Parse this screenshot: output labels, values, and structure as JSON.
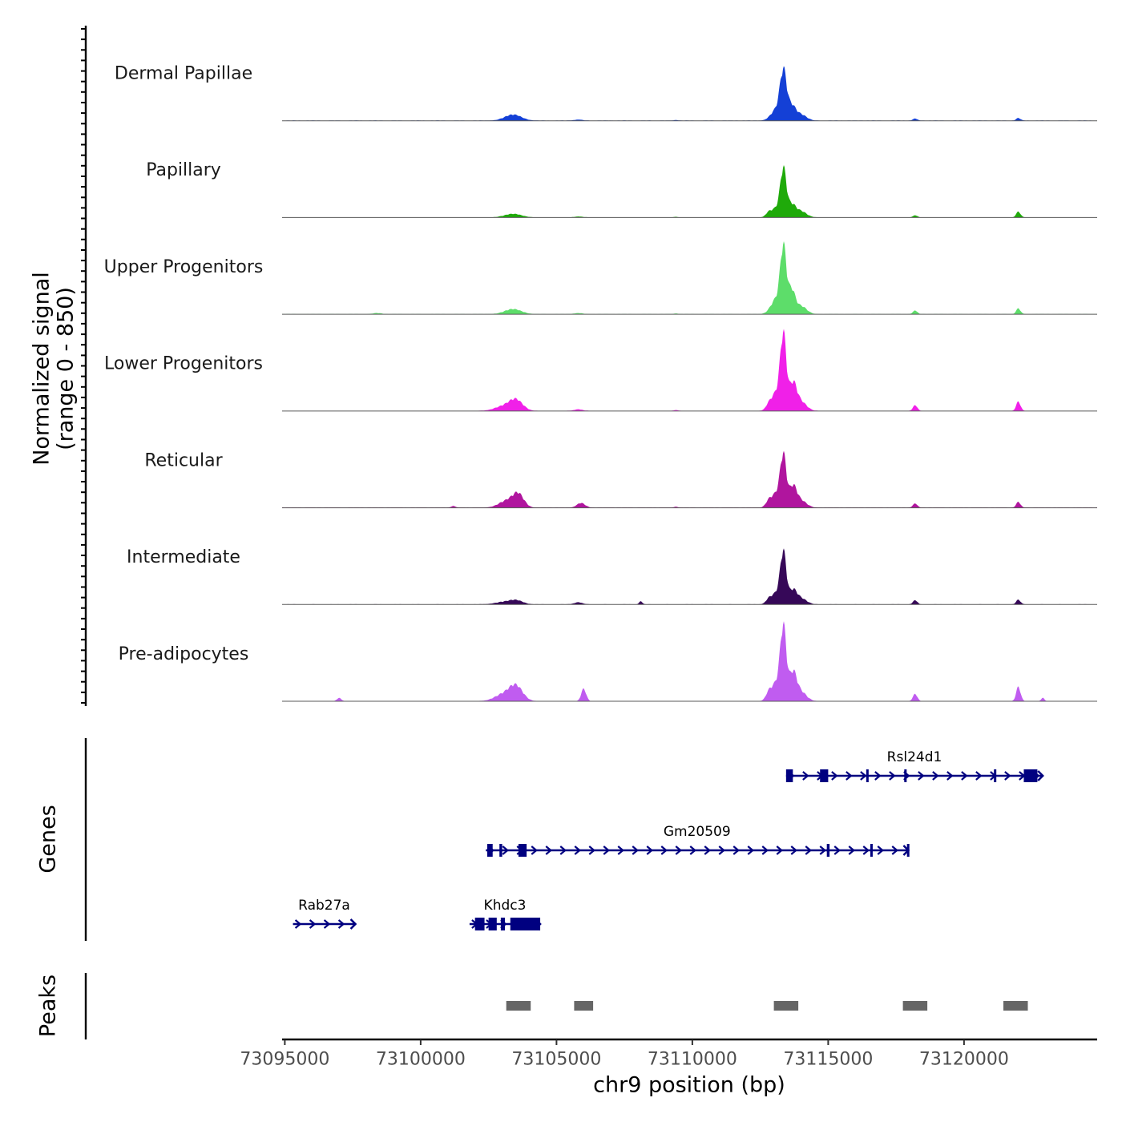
{
  "chart_data": {
    "type": "area",
    "title": "",
    "ylabel_signal": "Normalized signal",
    "ylabel_range": "(range 0 - 850)",
    "signal_range": [
      0,
      850
    ],
    "xlabel": "chr9 position (bp)",
    "xlim": [
      73094900,
      73124900
    ],
    "x_ticks": [
      {
        "value": 73095000,
        "label": "73095000"
      },
      {
        "value": 73100000,
        "label": "73100000"
      },
      {
        "value": 73105000,
        "label": "73105000"
      },
      {
        "value": 73110000,
        "label": "73110000"
      },
      {
        "value": 73115000,
        "label": "73115000"
      },
      {
        "value": 73120000,
        "label": "73120000"
      }
    ],
    "tracks": [
      {
        "name": "Dermal Papillae",
        "color": "#1440d6",
        "peaks": [
          [
            73103400,
            60,
            300
          ],
          [
            73105800,
            10,
            150
          ],
          [
            73109400,
            6,
            80
          ],
          [
            73113350,
            450,
            120
          ],
          [
            73113650,
            140,
            150
          ],
          [
            73113100,
            110,
            200
          ],
          [
            73114000,
            60,
            200
          ],
          [
            73118200,
            20,
            80
          ],
          [
            73122000,
            25,
            80
          ]
        ]
      },
      {
        "name": "Papillary",
        "color": "#1faa0a",
        "peaks": [
          [
            73103400,
            35,
            300
          ],
          [
            73105800,
            8,
            150
          ],
          [
            73109400,
            5,
            80
          ],
          [
            73112800,
            30,
            100
          ],
          [
            73113350,
            440,
            110
          ],
          [
            73113650,
            120,
            150
          ],
          [
            73113100,
            90,
            200
          ],
          [
            73114000,
            60,
            200
          ],
          [
            73118200,
            20,
            80
          ],
          [
            73122000,
            55,
            80
          ]
        ]
      },
      {
        "name": "Upper Progenitors",
        "color": "#5ddd6a",
        "peaks": [
          [
            73098400,
            10,
            150
          ],
          [
            73103400,
            50,
            300
          ],
          [
            73105800,
            10,
            150
          ],
          [
            73109400,
            6,
            80
          ],
          [
            73113350,
            610,
            110
          ],
          [
            73113650,
            230,
            130
          ],
          [
            73113100,
            150,
            200
          ],
          [
            73114000,
            80,
            200
          ],
          [
            73118200,
            35,
            80
          ],
          [
            73122000,
            55,
            80
          ]
        ]
      },
      {
        "name": "Lower Progenitors",
        "color": "#f020e8",
        "peaks": [
          [
            73103500,
            110,
            250
          ],
          [
            73103000,
            40,
            300
          ],
          [
            73105800,
            15,
            150
          ],
          [
            73109400,
            8,
            80
          ],
          [
            73112800,
            30,
            100
          ],
          [
            73113350,
            690,
            110
          ],
          [
            73113700,
            260,
            140
          ],
          [
            73113100,
            180,
            200
          ],
          [
            73114000,
            90,
            200
          ],
          [
            73118200,
            55,
            80
          ],
          [
            73122000,
            90,
            80
          ]
        ]
      },
      {
        "name": "Reticular",
        "color": "#b0159e",
        "peaks": [
          [
            73103600,
            120,
            200
          ],
          [
            73103200,
            70,
            300
          ],
          [
            73101200,
            15,
            80
          ],
          [
            73105900,
            45,
            150
          ],
          [
            73109400,
            8,
            80
          ],
          [
            73112800,
            40,
            100
          ],
          [
            73113350,
            470,
            110
          ],
          [
            73113700,
            200,
            140
          ],
          [
            73113100,
            140,
            200
          ],
          [
            73114000,
            70,
            200
          ],
          [
            73118200,
            40,
            80
          ],
          [
            73122000,
            55,
            80
          ]
        ]
      },
      {
        "name": "Intermediate",
        "color": "#360858",
        "peaks": [
          [
            73103500,
            40,
            250
          ],
          [
            73103000,
            20,
            300
          ],
          [
            73105800,
            20,
            150
          ],
          [
            73108100,
            30,
            60
          ],
          [
            73112800,
            30,
            100
          ],
          [
            73113350,
            480,
            110
          ],
          [
            73113700,
            130,
            140
          ],
          [
            73113100,
            110,
            200
          ],
          [
            73114000,
            60,
            200
          ],
          [
            73118200,
            40,
            80
          ],
          [
            73122000,
            45,
            80
          ]
        ]
      },
      {
        "name": "Pre-adipocytes",
        "color": "#c05cf0",
        "peaks": [
          [
            73097000,
            30,
            80
          ],
          [
            73103500,
            150,
            250
          ],
          [
            73103000,
            60,
            300
          ],
          [
            73106000,
            120,
            90
          ],
          [
            73112800,
            50,
            100
          ],
          [
            73113350,
            670,
            110
          ],
          [
            73113700,
            270,
            140
          ],
          [
            73113100,
            180,
            200
          ],
          [
            73114000,
            90,
            200
          ],
          [
            73118200,
            70,
            80
          ],
          [
            73122000,
            140,
            80
          ],
          [
            73122900,
            30,
            60
          ]
        ]
      }
    ],
    "genes": [
      {
        "name": "Rsl24d1",
        "row": 0,
        "start": 73113450,
        "end": 73122900,
        "exons": [
          [
            73113450,
            73113700
          ],
          [
            73114700,
            73115000
          ],
          [
            73116400,
            73116450
          ],
          [
            73117800,
            73117850
          ],
          [
            73121100,
            73121150
          ],
          [
            73122200,
            73122700
          ]
        ]
      },
      {
        "name": "Gm20509",
        "row": 1,
        "start": 73102400,
        "end": 73117950,
        "exons": [
          [
            73102450,
            73102650
          ],
          [
            73102900,
            73103000
          ],
          [
            73103600,
            73103900
          ],
          [
            73114950,
            73115050
          ],
          [
            73116550,
            73116600
          ],
          [
            73117900,
            73117950
          ]
        ]
      },
      {
        "name": "Rab27a",
        "row": 2,
        "start": 73095300,
        "end": 73097600,
        "exons": []
      },
      {
        "name": "Khdc3",
        "row": 2,
        "start": 73101800,
        "end": 73104400,
        "exons": [
          [
            73102000,
            73102350
          ],
          [
            73102500,
            73102800
          ],
          [
            73102950,
            73103100
          ],
          [
            73103300,
            73104400
          ]
        ]
      }
    ],
    "genes_label": "Genes",
    "peaks_label": "Peaks",
    "peak_regions": [
      [
        73103150,
        73104050
      ],
      [
        73105650,
        73106350
      ],
      [
        73113000,
        73113900
      ],
      [
        73117750,
        73118650
      ],
      [
        73121450,
        73122350
      ]
    ],
    "gene_color": "#000080",
    "peak_color": "#666666"
  }
}
